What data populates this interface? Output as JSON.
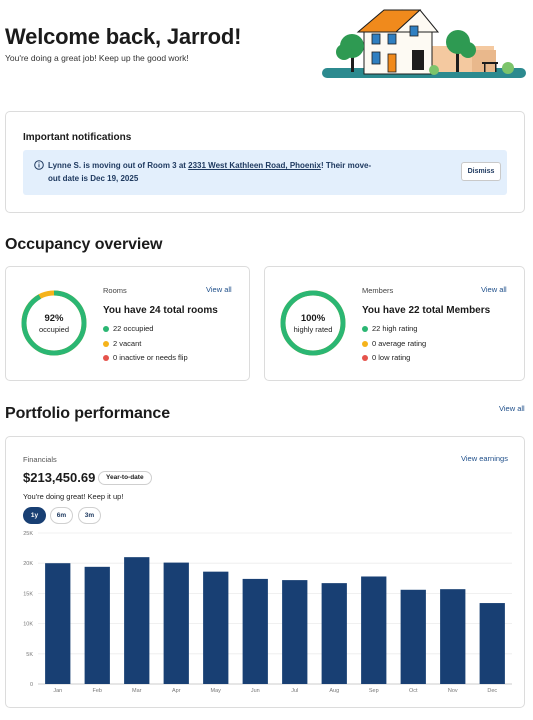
{
  "header": {
    "title": "Welcome back, Jarrod!",
    "subtitle": "You're doing a great job! Keep up the good work!"
  },
  "notifications": {
    "title": "Important notifications",
    "message_prefix": "Lynne S. is moving out of Room 3 at ",
    "message_link": "2331 West Kathleen Road, Phoenix",
    "message_suffix": "! Their move-out date is Dec 19, 2025",
    "dismiss_label": "Dismiss"
  },
  "occupancy": {
    "title": "Occupancy overview",
    "rooms": {
      "label": "Rooms",
      "view_all": "View all",
      "percent": "92%",
      "caption": "occupied",
      "fill": 0.92,
      "heading": "You have 24 total rooms",
      "legend": [
        {
          "text": "22 occupied",
          "color": "#2bb673"
        },
        {
          "text": "2 vacant",
          "color": "#f5b31b"
        },
        {
          "text": "0 inactive or needs flip",
          "color": "#e5534b"
        }
      ]
    },
    "members": {
      "label": "Members",
      "view_all": "View all",
      "percent": "100%",
      "caption": "highly rated",
      "fill": 1.0,
      "heading": "You have 22 total Members",
      "legend": [
        {
          "text": "22 high rating",
          "color": "#2bb673"
        },
        {
          "text": "0 average rating",
          "color": "#f5b31b"
        },
        {
          "text": "0 low rating",
          "color": "#e5534b"
        }
      ]
    }
  },
  "portfolio": {
    "title": "Portfolio performance",
    "view_all": "View all",
    "financials": {
      "label": "Financials",
      "view_earnings": "View earnings",
      "amount": "$213,450.69",
      "badge": "Year-to-date",
      "subtitle": "You're doing great! Keep it up!",
      "ranges": [
        "1y",
        "6m",
        "3m"
      ],
      "active_range": "1y"
    }
  },
  "colors": {
    "accent": "#183f73",
    "bar": "#183f73",
    "ring_green": "#2bb673",
    "ring_yellow": "#f5b31b",
    "banner": "#e3effc"
  },
  "chart_data": {
    "type": "bar",
    "categories": [
      "Jan",
      "Feb",
      "Mar",
      "Apr",
      "May",
      "Jun",
      "Jul",
      "Aug",
      "Sep",
      "Oct",
      "Nov",
      "Dec"
    ],
    "values": [
      20000,
      19400,
      21000,
      20100,
      18600,
      17400,
      17200,
      16700,
      17800,
      15600,
      15700,
      13400
    ],
    "y_ticks": [
      "0",
      "5K",
      "10K",
      "15K",
      "20K",
      "25K"
    ],
    "ylim": [
      0,
      25000
    ],
    "grid": true
  }
}
